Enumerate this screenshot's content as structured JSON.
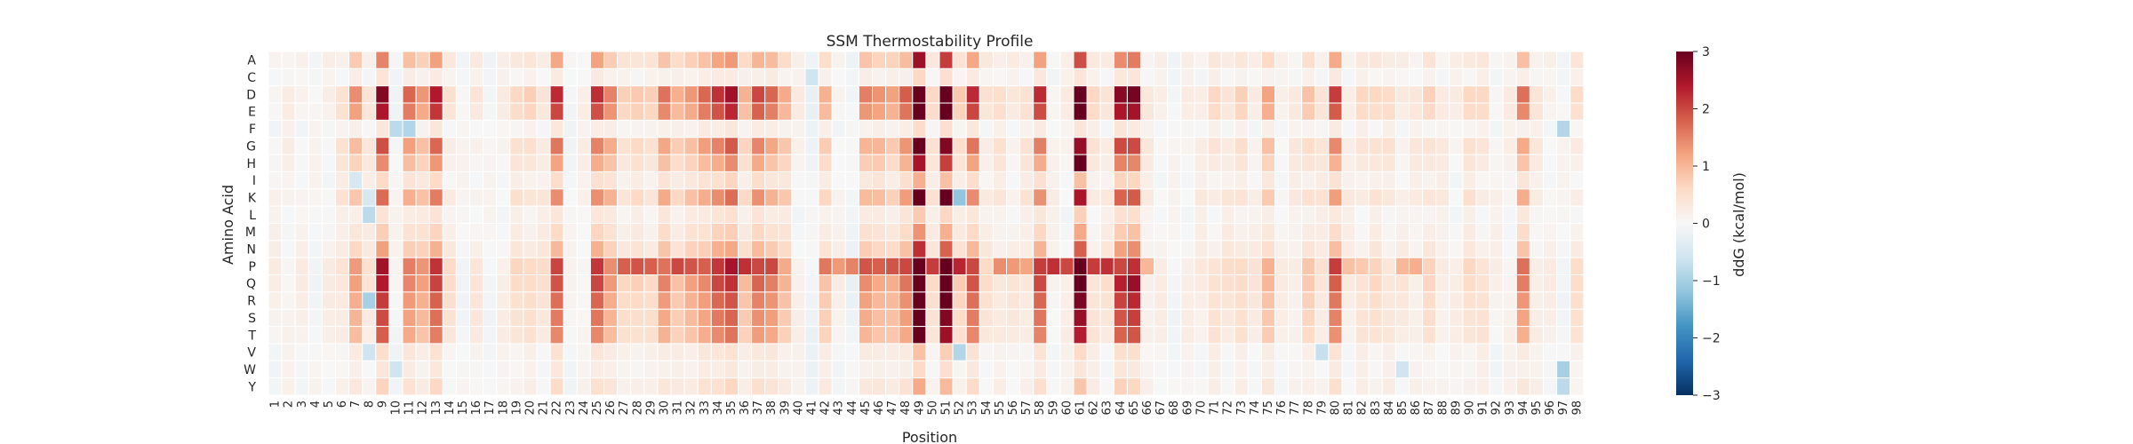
{
  "chart_data": {
    "type": "heatmap",
    "title": "SSM Thermostability Profile",
    "xlabel": "Position",
    "ylabel": "Amino Acid",
    "colorbar_label": "ddG (kcal/mol)",
    "colormap": "RdBu_r",
    "vmin": -3,
    "vmax": 3,
    "colorbar_ticks": [
      "-3",
      "-2",
      "-1",
      "0",
      "1",
      "2",
      "3"
    ],
    "colorbar_tick_labels": [
      "−3",
      "−2",
      "−1",
      "0",
      "1",
      "2",
      "3"
    ],
    "grid": "white cell borders",
    "legend": "colorbar right",
    "rows": [
      "A",
      "C",
      "D",
      "E",
      "F",
      "G",
      "H",
      "I",
      "K",
      "L",
      "M",
      "N",
      "P",
      "Q",
      "R",
      "S",
      "T",
      "V",
      "W",
      "Y"
    ],
    "columns": [
      "1",
      "2",
      "3",
      "4",
      "5",
      "6",
      "7",
      "8",
      "9",
      "10",
      "11",
      "12",
      "13",
      "14",
      "15",
      "16",
      "17",
      "18",
      "19",
      "20",
      "21",
      "22",
      "23",
      "24",
      "25",
      "26",
      "27",
      "28",
      "29",
      "30",
      "31",
      "32",
      "33",
      "34",
      "35",
      "36",
      "37",
      "38",
      "39",
      "40",
      "41",
      "42",
      "43",
      "44",
      "45",
      "46",
      "47",
      "48",
      "49",
      "50",
      "51",
      "52",
      "53",
      "54",
      "55",
      "56",
      "57",
      "58",
      "59",
      "60",
      "61",
      "62",
      "63",
      "64",
      "65",
      "66",
      "67",
      "68",
      "69",
      "70",
      "71",
      "72",
      "73",
      "74",
      "75",
      "76",
      "77",
      "78",
      "79",
      "80",
      "81",
      "82",
      "83",
      "84",
      "85",
      "86",
      "87",
      "88",
      "89",
      "90",
      "91",
      "92",
      "93",
      "94",
      "95",
      "96",
      "97",
      "98"
    ],
    "col_profile": [
      0.1,
      0.1,
      0.1,
      0.0,
      0.1,
      0.3,
      0.8,
      0.3,
      1.6,
      0.0,
      1.0,
      0.8,
      1.4,
      0.3,
      0.0,
      0.2,
      0.0,
      0.1,
      0.4,
      0.4,
      0.3,
      1.3,
      0.0,
      0.1,
      1.3,
      0.9,
      0.4,
      0.5,
      0.4,
      1.0,
      0.6,
      0.8,
      1.0,
      1.3,
      1.5,
      0.6,
      1.2,
      1.0,
      0.7,
      0.1,
      -0.1,
      0.6,
      0.1,
      -0.1,
      0.9,
      0.8,
      0.7,
      1.1,
      2.8,
      0.4,
      2.3,
      0.5,
      1.3,
      0.3,
      0.3,
      0.2,
      0.3,
      1.3,
      0.1,
      0.1,
      2.2,
      0.3,
      0.3,
      1.6,
      1.7,
      0.2,
      0.1,
      0.0,
      0.1,
      0.2,
      0.3,
      0.3,
      0.4,
      0.2,
      0.7,
      0.1,
      0.2,
      0.5,
      0.3,
      1.2,
      0.2,
      0.3,
      0.4,
      0.3,
      0.2,
      0.2,
      0.4,
      0.2,
      0.1,
      0.4,
      0.3,
      0.1,
      0.1,
      1.0,
      0.2,
      0.1,
      0.0,
      0.3
    ],
    "row_weight": [
      0.9,
      0.2,
      1.7,
      1.5,
      0.2,
      1.2,
      0.9,
      0.4,
      1.1,
      0.3,
      0.5,
      0.8,
      1.6,
      1.5,
      1.3,
      1.2,
      1.1,
      0.3,
      0.2,
      0.4
    ],
    "special_cells": [
      {
        "row": "P",
        "col": "27",
        "value": 1.8
      },
      {
        "row": "P",
        "col": "28",
        "value": 1.9
      },
      {
        "row": "P",
        "col": "29",
        "value": 1.8
      },
      {
        "row": "P",
        "col": "31",
        "value": 2.0
      },
      {
        "row": "P",
        "col": "32",
        "value": 1.9
      },
      {
        "row": "P",
        "col": "33",
        "value": 1.8
      },
      {
        "row": "P",
        "col": "35",
        "value": 2.5
      },
      {
        "row": "P",
        "col": "36",
        "value": 2.2
      },
      {
        "row": "P",
        "col": "37",
        "value": 2.0
      },
      {
        "row": "P",
        "col": "38",
        "value": 2.0
      },
      {
        "row": "P",
        "col": "42",
        "value": 1.6
      },
      {
        "row": "P",
        "col": "43",
        "value": 1.3
      },
      {
        "row": "P",
        "col": "44",
        "value": 1.5
      },
      {
        "row": "P",
        "col": "45",
        "value": 1.9
      },
      {
        "row": "P",
        "col": "46",
        "value": 1.8
      },
      {
        "row": "P",
        "col": "47",
        "value": 1.9
      },
      {
        "row": "P",
        "col": "48",
        "value": 2.0
      },
      {
        "row": "P",
        "col": "50",
        "value": 2.1
      },
      {
        "row": "P",
        "col": "52",
        "value": 2.3
      },
      {
        "row": "P",
        "col": "53",
        "value": 2.0
      },
      {
        "row": "P",
        "col": "55",
        "value": 1.4
      },
      {
        "row": "P",
        "col": "56",
        "value": 1.3
      },
      {
        "row": "P",
        "col": "57",
        "value": 1.2
      },
      {
        "row": "P",
        "col": "59",
        "value": 2.2
      },
      {
        "row": "P",
        "col": "60",
        "value": 2.0
      },
      {
        "row": "P",
        "col": "62",
        "value": 2.1
      },
      {
        "row": "P",
        "col": "63",
        "value": 2.2
      },
      {
        "row": "P",
        "col": "64",
        "value": 2.0
      },
      {
        "row": "P",
        "col": "65",
        "value": 2.2
      },
      {
        "row": "P",
        "col": "66",
        "value": 1.0
      },
      {
        "row": "P",
        "col": "80",
        "value": 2.1
      },
      {
        "row": "P",
        "col": "81",
        "value": 0.9
      },
      {
        "row": "P",
        "col": "82",
        "value": 0.8
      },
      {
        "row": "P",
        "col": "85",
        "value": 1.0
      },
      {
        "row": "P",
        "col": "86",
        "value": 1.1
      },
      {
        "row": "F",
        "col": "10",
        "value": -0.8
      },
      {
        "row": "F",
        "col": "11",
        "value": -0.9
      },
      {
        "row": "F",
        "col": "97",
        "value": -0.9
      },
      {
        "row": "K",
        "col": "8",
        "value": -0.5
      },
      {
        "row": "L",
        "col": "8",
        "value": -0.8
      },
      {
        "row": "R",
        "col": "8",
        "value": -1.0
      },
      {
        "row": "V",
        "col": "8",
        "value": -0.6
      },
      {
        "row": "W",
        "col": "10",
        "value": -0.6
      },
      {
        "row": "W",
        "col": "97",
        "value": -1.0
      },
      {
        "row": "Y",
        "col": "97",
        "value": -0.8
      },
      {
        "row": "K",
        "col": "51",
        "value": 3.0
      },
      {
        "row": "H",
        "col": "61",
        "value": 3.0
      },
      {
        "row": "K",
        "col": "52",
        "value": -1.2
      },
      {
        "row": "V",
        "col": "52",
        "value": -0.9
      },
      {
        "row": "C",
        "col": "41",
        "value": -0.6
      },
      {
        "row": "V",
        "col": "79",
        "value": -0.7
      },
      {
        "row": "W",
        "col": "85",
        "value": -0.6
      },
      {
        "row": "I",
        "col": "7",
        "value": -0.5
      }
    ]
  }
}
